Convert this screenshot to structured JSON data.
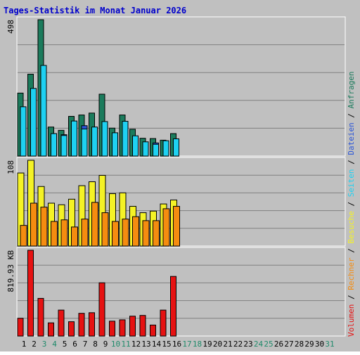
{
  "chart_data": [
    {
      "type": "bar",
      "title": "Tages-Statistik im Monat Januar 2026",
      "ymax_label": "498",
      "categories": [
        "1",
        "2",
        "3",
        "4",
        "5",
        "6",
        "7",
        "8",
        "9",
        "10",
        "11",
        "12",
        "13",
        "14",
        "15",
        "16",
        "17",
        "18",
        "19",
        "20",
        "21",
        "22",
        "23",
        "24",
        "25",
        "26",
        "27",
        "28",
        "29",
        "30",
        "31"
      ],
      "weekend_days": [
        "3",
        "4",
        "10",
        "11",
        "17",
        "18",
        "24",
        "25",
        "31"
      ],
      "series": [
        {
          "name": "Anfragen",
          "color": "#1b7b5c",
          "values": [
            230,
            299,
            498,
            106,
            94,
            145,
            150,
            157,
            226,
            102,
            150,
            98,
            65,
            64,
            58,
            82,
            0,
            0,
            0,
            0,
            0,
            0,
            0,
            0,
            0,
            0,
            0,
            0,
            0,
            0,
            0
          ]
        },
        {
          "name": "Dateien",
          "color": "#2a55d8",
          "values": [
            97,
            152,
            148,
            82,
            78,
            91,
            111,
            94,
            86,
            83,
            87,
            63,
            48,
            48,
            45,
            50,
            0,
            0,
            0,
            0,
            0,
            0,
            0,
            0,
            0,
            0,
            0,
            0,
            0,
            0,
            0
          ]
        },
        {
          "name": "Seiten",
          "color": "#1ed1f2",
          "values": [
            180,
            247,
            331,
            82,
            75,
            128,
            99,
            106,
            126,
            85,
            127,
            74,
            52,
            43,
            56,
            63,
            0,
            0,
            0,
            0,
            0,
            0,
            0,
            0,
            0,
            0,
            0,
            0,
            0,
            0,
            0
          ]
        }
      ]
    },
    {
      "type": "bar",
      "ymax_label": "108",
      "categories": [
        "1",
        "2",
        "3",
        "4",
        "5",
        "6",
        "7",
        "8",
        "9",
        "10",
        "11",
        "12",
        "13",
        "14",
        "15",
        "16",
        "17",
        "18",
        "19",
        "20",
        "21",
        "22",
        "23",
        "24",
        "25",
        "26",
        "27",
        "28",
        "29",
        "30",
        "31"
      ],
      "series": [
        {
          "name": "Besuche",
          "color": "#f4f226",
          "values": [
            92,
            108,
            75,
            54,
            52,
            59,
            76,
            81,
            89,
            66,
            67,
            50,
            42,
            44,
            53,
            58,
            0,
            0,
            0,
            0,
            0,
            0,
            0,
            0,
            0,
            0,
            0,
            0,
            0,
            0,
            0
          ]
        },
        {
          "name": "Rechner",
          "color": "#f58c10",
          "values": [
            26,
            54,
            49,
            31,
            33,
            24,
            34,
            55,
            42,
            31,
            34,
            37,
            32,
            32,
            47,
            50,
            0,
            0,
            0,
            0,
            0,
            0,
            0,
            0,
            0,
            0,
            0,
            0,
            0,
            0,
            0
          ]
        }
      ]
    },
    {
      "type": "bar",
      "ymax_label": "819.93 KB",
      "categories": [
        "1",
        "2",
        "3",
        "4",
        "5",
        "6",
        "7",
        "8",
        "9",
        "10",
        "11",
        "12",
        "13",
        "14",
        "15",
        "16",
        "17",
        "18",
        "19",
        "20",
        "21",
        "22",
        "23",
        "24",
        "25",
        "26",
        "27",
        "28",
        "29",
        "30",
        "31"
      ],
      "series": [
        {
          "name": "Volumen",
          "color": "#e61212",
          "values": [
            170,
            820,
            360,
            126,
            248,
            137,
            217,
            223,
            509,
            142,
            155,
            190,
            197,
            105,
            248,
            570,
            0,
            0,
            0,
            0,
            0,
            0,
            0,
            0,
            0,
            0,
            0,
            0,
            0,
            0,
            0
          ]
        }
      ]
    }
  ],
  "legend_separator": " / ",
  "colors": {
    "background": "#c0c0c0",
    "title": "#0000cc",
    "axis_text": "#000000",
    "weekend_text": "#1f8a6a",
    "gridline": "#808080"
  }
}
